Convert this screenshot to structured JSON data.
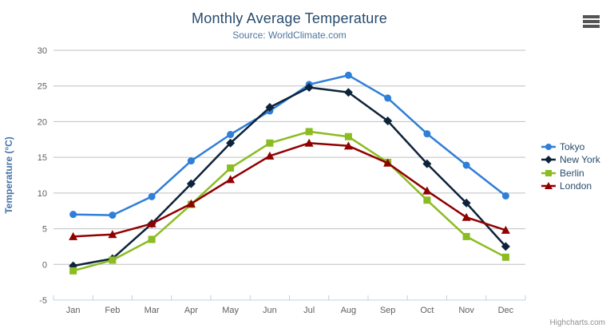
{
  "header": {
    "title": "Monthly Average Temperature",
    "subtitle": "Source: WorldClimate.com"
  },
  "menu": {
    "icon": "hamburger-menu-icon"
  },
  "credits": {
    "label": "Highcharts.com"
  },
  "colors": {
    "title": "#274b6d",
    "subtitle": "#4d759e",
    "axis_label": "#606060",
    "axis_title": "#4572A7",
    "gridline": "#C0C0C0",
    "axis_line": "#C0D0E0",
    "legend_text": "#274b6d",
    "credits_text": "#8f8f8f"
  },
  "chart_data": {
    "type": "line",
    "title": "Monthly Average Temperature",
    "subtitle": "Source: WorldClimate.com",
    "categories": [
      "Jan",
      "Feb",
      "Mar",
      "Apr",
      "May",
      "Jun",
      "Jul",
      "Aug",
      "Sep",
      "Oct",
      "Nov",
      "Dec"
    ],
    "series": [
      {
        "name": "Tokyo",
        "color": "#2f7ed8",
        "marker": "circle",
        "values": [
          7.0,
          6.9,
          9.5,
          14.5,
          18.2,
          21.5,
          25.2,
          26.5,
          23.3,
          18.3,
          13.9,
          9.6
        ]
      },
      {
        "name": "New York",
        "color": "#0d233a",
        "marker": "diamond",
        "values": [
          -0.2,
          0.8,
          5.7,
          11.3,
          17.0,
          22.0,
          24.8,
          24.1,
          20.1,
          14.1,
          8.6,
          2.5
        ]
      },
      {
        "name": "Berlin",
        "color": "#8bbc21",
        "marker": "square",
        "values": [
          -0.9,
          0.6,
          3.5,
          8.4,
          13.5,
          17.0,
          18.6,
          17.9,
          14.3,
          9.0,
          3.9,
          1.0
        ]
      },
      {
        "name": "London",
        "color": "#910000",
        "marker": "triangle",
        "values": [
          3.9,
          4.2,
          5.7,
          8.5,
          11.9,
          15.2,
          17.0,
          16.6,
          14.2,
          10.3,
          6.6,
          4.8
        ]
      }
    ],
    "xlabel": "",
    "ylabel": "Temperature (°C)",
    "ylim": [
      -5,
      30
    ],
    "yticks": [
      -5,
      0,
      5,
      10,
      15,
      20,
      25,
      30
    ],
    "grid": true,
    "legend_position": "right"
  }
}
